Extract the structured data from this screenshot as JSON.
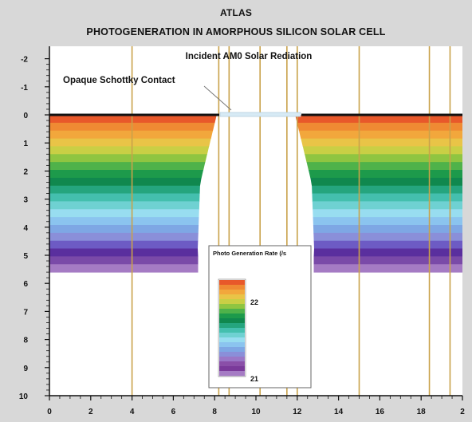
{
  "header": {
    "app_title": "ATLAS",
    "title": "PHOTOGENERATION IN AMORPHOUS SILICON SOLAR CELL"
  },
  "annotations": {
    "incident": "Incident AM0 Solar Rediation",
    "contact": "Opaque Schottky Contact"
  },
  "x_axis": {
    "ticks": [
      "0",
      "2",
      "4",
      "6",
      "8",
      "10",
      "12",
      "14",
      "16",
      "18",
      "2"
    ]
  },
  "y_axis": {
    "ticks": [
      "-2",
      "-1",
      "0",
      "1",
      "2",
      "3",
      "4",
      "5",
      "6",
      "7",
      "8",
      "9",
      "10"
    ]
  },
  "legend": {
    "title": "Photo Generation Rate (/s",
    "top_label": "22",
    "bottom_label": "21",
    "colors": [
      "#e8582a",
      "#ef8a33",
      "#f2a73c",
      "#e9c447",
      "#c9cf45",
      "#8fc541",
      "#4fb24a",
      "#1d9a4b",
      "#10884e",
      "#25a57e",
      "#44bfae",
      "#6fd1d2",
      "#98ddf0",
      "#8bc4ef",
      "#7ea7e4",
      "#8a8fd9",
      "#9a77c7",
      "#8a4fa8",
      "#7a3a9a",
      "#a57bc4"
    ]
  },
  "colors": {
    "band_colors": [
      "#e8582a",
      "#ef8a33",
      "#f2a73c",
      "#e9c447",
      "#c9cf45",
      "#8fc541",
      "#4fb24a",
      "#1d9a4b",
      "#10884e",
      "#25a57e",
      "#44bfae",
      "#6fd1d2",
      "#98ddf0",
      "#8bc4ef",
      "#7ea7e4",
      "#8a8fd9",
      "#6d5bc4",
      "#5a2f9e",
      "#7a4aa8",
      "#a57bc4"
    ],
    "electrode": "#c9a24a",
    "contact_line": "#111111",
    "opening": "#d7eaf5"
  }
}
